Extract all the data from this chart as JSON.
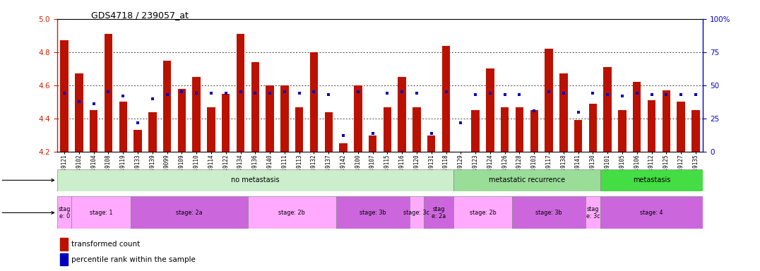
{
  "title": "GDS4718 / 239057_at",
  "samples": [
    "GSM549121",
    "GSM549102",
    "GSM549104",
    "GSM549108",
    "GSM549119",
    "GSM549133",
    "GSM549139",
    "GSM549099",
    "GSM549109",
    "GSM549110",
    "GSM549114",
    "GSM549122",
    "GSM549134",
    "GSM549136",
    "GSM549140",
    "GSM549111",
    "GSM549113",
    "GSM549132",
    "GSM549137",
    "GSM549142",
    "GSM549100",
    "GSM549107",
    "GSM549115",
    "GSM549116",
    "GSM549120",
    "GSM549131",
    "GSM549118",
    "GSM549129",
    "GSM549123",
    "GSM549124",
    "GSM549126",
    "GSM549128",
    "GSM549103",
    "GSM549117",
    "GSM549138",
    "GSM549141",
    "GSM549130",
    "GSM549101",
    "GSM549105",
    "GSM549106",
    "GSM549112",
    "GSM549125",
    "GSM549127",
    "GSM549135"
  ],
  "bar_values": [
    4.87,
    4.67,
    4.45,
    4.91,
    4.5,
    4.33,
    4.44,
    4.75,
    4.58,
    4.65,
    4.47,
    4.55,
    4.91,
    4.74,
    4.6,
    4.6,
    4.47,
    4.8,
    4.44,
    4.25,
    4.6,
    4.3,
    4.47,
    4.65,
    4.47,
    4.3,
    4.84,
    4.2,
    4.45,
    4.7,
    4.47,
    4.47,
    4.45,
    4.82,
    4.67,
    4.39,
    4.49,
    4.71,
    4.45,
    4.62,
    4.51,
    4.57,
    4.5,
    4.45
  ],
  "dot_values": [
    44,
    38,
    36,
    45,
    42,
    22,
    40,
    43,
    45,
    44,
    44,
    44,
    45,
    44,
    44,
    45,
    44,
    45,
    43,
    12,
    45,
    14,
    44,
    45,
    44,
    14,
    45,
    22,
    43,
    44,
    43,
    43,
    31,
    45,
    44,
    30,
    44,
    43,
    42,
    44,
    43,
    43,
    43,
    43
  ],
  "ylim_left": [
    4.2,
    5.0
  ],
  "ylim_right": [
    0,
    100
  ],
  "yticks_left": [
    4.2,
    4.4,
    4.6,
    4.8,
    5.0
  ],
  "yticks_right": [
    0,
    25,
    50,
    75,
    100
  ],
  "bar_color": "#bb1100",
  "dot_color": "#0000bb",
  "bar_bottom": 4.2,
  "disease_groups": [
    {
      "label": "no metastasis",
      "start": 0,
      "end": 27,
      "color": "#cceecc"
    },
    {
      "label": "metastatic recurrence",
      "start": 27,
      "end": 37,
      "color": "#99dd99"
    },
    {
      "label": "metastasis",
      "start": 37,
      "end": 44,
      "color": "#55ee55"
    }
  ],
  "stage_groups": [
    {
      "label": "stag\ne: 0",
      "start": 0,
      "end": 1,
      "color": "#ffaaff"
    },
    {
      "label": "stage: 1",
      "start": 1,
      "end": 5,
      "color": "#ffaaff"
    },
    {
      "label": "stage: 2a",
      "start": 5,
      "end": 13,
      "color": "#dd77ee"
    },
    {
      "label": "stage: 2b",
      "start": 13,
      "end": 19,
      "color": "#ffaaff"
    },
    {
      "label": "stage: 3b",
      "start": 19,
      "end": 24,
      "color": "#dd77ee"
    },
    {
      "label": "stage: 3c",
      "start": 24,
      "end": 25,
      "color": "#ffaaff"
    },
    {
      "label": "stag\ne: 2a",
      "start": 25,
      "end": 27,
      "color": "#dd77ee"
    },
    {
      "label": "stage: 2b",
      "start": 27,
      "end": 31,
      "color": "#ffaaff"
    },
    {
      "label": "stage: 3b",
      "start": 31,
      "end": 36,
      "color": "#dd77ee"
    },
    {
      "label": "stag\ne: 3c",
      "start": 36,
      "end": 37,
      "color": "#ffaaff"
    },
    {
      "label": "stage: 4",
      "start": 37,
      "end": 44,
      "color": "#dd77ee"
    }
  ]
}
